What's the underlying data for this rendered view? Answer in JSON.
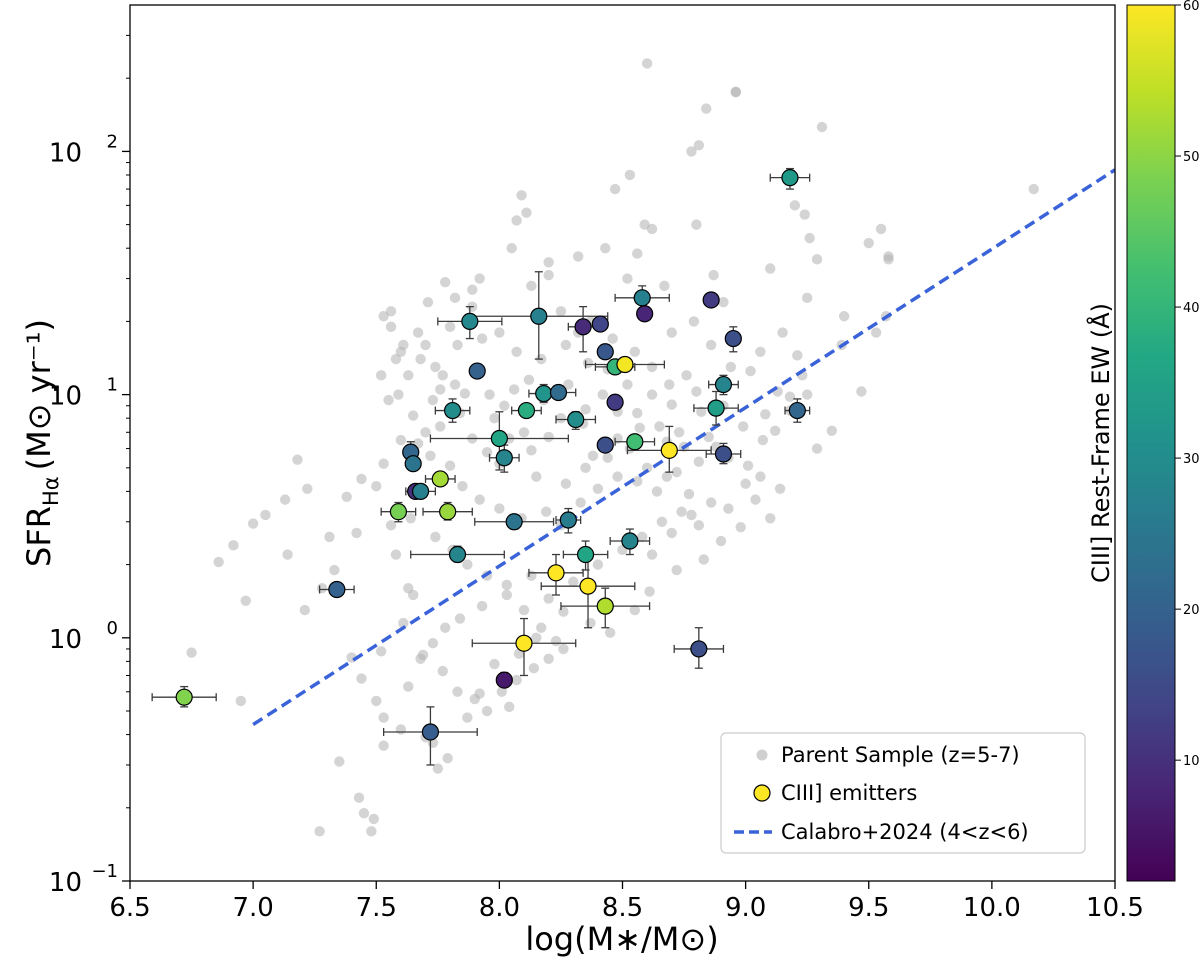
{
  "chart_data": {
    "type": "scatter",
    "xlabel": "log(M∗/M⊙)",
    "ylabel": "SFR",
    "ylabel_sub": "Hα",
    "ylabel_units": "(M⊙ yr⁻¹)",
    "xlim": [
      6.5,
      10.5
    ],
    "ylim": [
      0.1,
      400
    ],
    "yscale": "log",
    "grid": false,
    "x_ticks": [
      "6.5",
      "7.0",
      "7.5",
      "8.0",
      "8.5",
      "9.0",
      "9.5",
      "10.0",
      "10.5"
    ],
    "y_ticks": [
      {
        "value": 0.1,
        "base": "10",
        "exp": "−1"
      },
      {
        "value": 1,
        "base": "10",
        "exp": "0"
      },
      {
        "value": 10,
        "base": "10",
        "exp": "1"
      },
      {
        "value": 100,
        "base": "10",
        "exp": "2"
      }
    ],
    "colorbar": {
      "label": "CIII] Rest-Frame EW (Å)",
      "range": [
        2,
        60
      ],
      "ticks": [
        "10",
        "20",
        "30",
        "40",
        "50",
        "60"
      ],
      "colormap": "viridis"
    },
    "legend": {
      "placement": "lower-right",
      "entries": [
        {
          "label": "Parent Sample (z=5-7)",
          "marker": "gray-circle"
        },
        {
          "label": "CIII] emitters",
          "marker": "yellow-circle"
        },
        {
          "label": "Calabro+2024 (4<z<6)",
          "marker": "blue-dashed-line"
        }
      ]
    },
    "parent_color": "#b0b0b0",
    "parent_sample": [
      [
        8.6,
        230
      ],
      [
        8.96,
        176
      ],
      [
        8.78,
        100
      ],
      [
        8.84,
        150
      ],
      [
        8.47,
        70
      ],
      [
        9.31,
        126
      ],
      [
        8.96,
        175
      ],
      [
        8.81,
        106
      ],
      [
        7.89,
        23
      ],
      [
        7.92,
        30
      ],
      [
        8.05,
        40
      ],
      [
        8.07,
        52
      ],
      [
        8.2,
        31
      ],
      [
        8.32,
        37
      ],
      [
        8.09,
        66
      ],
      [
        8.11,
        56
      ],
      [
        7.78,
        29
      ],
      [
        7.8,
        19
      ],
      [
        7.82,
        25
      ],
      [
        7.89,
        27
      ],
      [
        8.13,
        28
      ],
      [
        8.2,
        35
      ],
      [
        8.43,
        40
      ],
      [
        8.52,
        30
      ],
      [
        8.56,
        38
      ],
      [
        8.67,
        28
      ],
      [
        8.87,
        31
      ],
      [
        8.91,
        24
      ],
      [
        9.1,
        33
      ],
      [
        9.2,
        60
      ],
      [
        9.26,
        44
      ],
      [
        9.29,
        36
      ],
      [
        9.25,
        25
      ],
      [
        9.24,
        55
      ],
      [
        9.5,
        42
      ],
      [
        9.58,
        37
      ],
      [
        10.17,
        70
      ],
      [
        8.53,
        80
      ],
      [
        8.59,
        50
      ],
      [
        8.62,
        48
      ],
      [
        8.8,
        50
      ],
      [
        7.56,
        22
      ],
      [
        7.61,
        16
      ],
      [
        7.67,
        18
      ],
      [
        7.71,
        24
      ],
      [
        7.56,
        19
      ],
      [
        7.6,
        15
      ],
      [
        7.53,
        21
      ],
      [
        7.58,
        14
      ],
      [
        7.74,
        13
      ],
      [
        7.77,
        12
      ],
      [
        7.82,
        11
      ],
      [
        7.92,
        12.5
      ],
      [
        7.96,
        10
      ],
      [
        8.02,
        9
      ],
      [
        8.1,
        7
      ],
      [
        8.18,
        9.5
      ],
      [
        8.25,
        8
      ],
      [
        8.34,
        7.6
      ],
      [
        8.42,
        10
      ],
      [
        8.48,
        8.5
      ],
      [
        8.56,
        8.4
      ],
      [
        8.65,
        7.4
      ],
      [
        8.73,
        7
      ],
      [
        8.82,
        8.5
      ],
      [
        8.91,
        9
      ],
      [
        8.99,
        7.4
      ],
      [
        9.07,
        6.5
      ],
      [
        9.12,
        7.1
      ],
      [
        9.18,
        8.6
      ],
      [
        9.25,
        10
      ],
      [
        9.35,
        7.1
      ],
      [
        9.47,
        10.3
      ],
      [
        9.53,
        18
      ],
      [
        9.57,
        21
      ],
      [
        7.13,
        3.7
      ],
      [
        7.22,
        4.1
      ],
      [
        7.18,
        5.4
      ],
      [
        7.0,
        2.95
      ],
      [
        7.05,
        3.2
      ],
      [
        7.14,
        2.2
      ],
      [
        7.31,
        2.6
      ],
      [
        7.38,
        3.8
      ],
      [
        7.5,
        4.2
      ],
      [
        7.44,
        4.5
      ],
      [
        7.53,
        5.2
      ],
      [
        7.67,
        6.3
      ],
      [
        7.72,
        5.6
      ],
      [
        7.8,
        5.1
      ],
      [
        7.85,
        4.2
      ],
      [
        7.92,
        3.7
      ],
      [
        8.0,
        3.4
      ],
      [
        8.09,
        3.1
      ],
      [
        8.19,
        3.3
      ],
      [
        8.25,
        2.9
      ],
      [
        8.33,
        3.6
      ],
      [
        8.4,
        4.1
      ],
      [
        8.48,
        4.6
      ],
      [
        8.56,
        4.4
      ],
      [
        8.64,
        4.0
      ],
      [
        8.72,
        4.8
      ],
      [
        8.81,
        5.3
      ],
      [
        8.88,
        6.1
      ],
      [
        8.93,
        5.5
      ],
      [
        9.01,
        5.1
      ],
      [
        9.06,
        4.6
      ],
      [
        6.92,
        2.4
      ],
      [
        6.86,
        2.05
      ],
      [
        6.97,
        1.42
      ],
      [
        7.21,
        1.3
      ],
      [
        7.28,
        1.6
      ],
      [
        7.33,
        1.9
      ],
      [
        7.4,
        0.83
      ],
      [
        7.44,
        0.68
      ],
      [
        7.5,
        0.55
      ],
      [
        7.53,
        0.47
      ],
      [
        7.63,
        0.63
      ],
      [
        7.68,
        0.82
      ],
      [
        7.73,
        0.95
      ],
      [
        7.78,
        1.1
      ],
      [
        7.84,
        1.2
      ],
      [
        7.93,
        1.35
      ],
      [
        8.03,
        1.65
      ],
      [
        8.13,
        1.8
      ],
      [
        8.2,
        1.45
      ],
      [
        8.26,
        1.28
      ],
      [
        8.37,
        1.15
      ],
      [
        8.45,
        1.05
      ],
      [
        8.55,
        1.3
      ],
      [
        8.61,
        1.55
      ],
      [
        8.72,
        1.9
      ],
      [
        8.83,
        2.1
      ],
      [
        8.9,
        2.5
      ],
      [
        8.98,
        2.85
      ],
      [
        9.1,
        3.1
      ],
      [
        6.75,
        0.87
      ],
      [
        6.95,
        0.55
      ],
      [
        7.27,
        0.16
      ],
      [
        7.43,
        0.22
      ],
      [
        7.45,
        0.19
      ],
      [
        7.48,
        0.16
      ],
      [
        7.49,
        0.18
      ],
      [
        7.35,
        0.31
      ],
      [
        7.53,
        0.36
      ],
      [
        7.6,
        0.42
      ],
      [
        7.7,
        0.39
      ],
      [
        7.73,
        0.37
      ],
      [
        7.75,
        0.29
      ],
      [
        7.79,
        0.32
      ],
      [
        7.87,
        0.47
      ],
      [
        7.95,
        0.5
      ],
      [
        8.01,
        0.6
      ],
      [
        8.07,
        0.67
      ],
      [
        8.14,
        0.75
      ],
      [
        8.2,
        0.82
      ],
      [
        8.26,
        0.9
      ],
      [
        8.04,
        0.52
      ],
      [
        7.92,
        0.59
      ],
      [
        7.63,
        1.6
      ],
      [
        7.52,
        0.88
      ],
      [
        9.29,
        6.0
      ],
      [
        9.0,
        4.3
      ],
      [
        8.78,
        3.2
      ],
      [
        8.7,
        2.7
      ],
      [
        8.62,
        2.2
      ],
      [
        9.23,
        12
      ],
      [
        9.21,
        14.5
      ],
      [
        9.39,
        16
      ],
      [
        8.25,
        22
      ],
      [
        8.32,
        18
      ],
      [
        8.36,
        13.5
      ],
      [
        8.44,
        12.7
      ],
      [
        8.7,
        18
      ],
      [
        8.79,
        20
      ],
      [
        8.86,
        16
      ],
      [
        9.02,
        12.5
      ],
      [
        7.63,
        12
      ],
      [
        7.68,
        14
      ],
      [
        7.73,
        9.5
      ],
      [
        7.84,
        8.4
      ],
      [
        7.98,
        8.0
      ],
      [
        8.04,
        6.6
      ],
      [
        8.13,
        5.9
      ],
      [
        8.2,
        6.7
      ],
      [
        8.38,
        5.6
      ],
      [
        8.48,
        6.6
      ],
      [
        8.57,
        7.3
      ],
      [
        8.68,
        6.4
      ],
      [
        8.75,
        6.1
      ],
      [
        8.85,
        6.7
      ],
      [
        9.08,
        8.3
      ],
      [
        9.13,
        10.3
      ],
      [
        7.55,
        9.5
      ],
      [
        7.52,
        12
      ],
      [
        7.59,
        10
      ],
      [
        7.65,
        8.2
      ],
      [
        7.76,
        7.4
      ],
      [
        7.89,
        6.6
      ],
      [
        7.95,
        5.8
      ],
      [
        8.0,
        5.2
      ],
      [
        8.15,
        4.6
      ],
      [
        8.27,
        4.3
      ],
      [
        8.35,
        5.0
      ],
      [
        8.44,
        5.5
      ],
      [
        8.53,
        6.0
      ],
      [
        8.6,
        5.0
      ],
      [
        8.68,
        4.6
      ],
      [
        8.77,
        3.9
      ],
      [
        8.86,
        3.6
      ],
      [
        8.93,
        3.4
      ],
      [
        9.04,
        3.7
      ],
      [
        9.14,
        4.1
      ],
      [
        7.42,
        2.7
      ],
      [
        7.56,
        2.9
      ],
      [
        7.64,
        3.1
      ],
      [
        7.74,
        2.6
      ],
      [
        7.81,
        2.3
      ],
      [
        7.87,
        2.0
      ],
      [
        7.95,
        1.8
      ],
      [
        8.03,
        1.5
      ],
      [
        8.1,
        1.3
      ],
      [
        8.17,
        1.1
      ],
      [
        8.23,
        0.97
      ],
      [
        8.3,
        1.7
      ],
      [
        8.4,
        2.0
      ],
      [
        8.5,
        2.3
      ],
      [
        8.58,
        2.6
      ],
      [
        8.66,
        3.0
      ],
      [
        8.74,
        3.3
      ],
      [
        8.81,
        2.9
      ],
      [
        7.58,
        2.2
      ],
      [
        7.65,
        1.5
      ],
      [
        7.61,
        1.15
      ],
      [
        7.69,
        0.85
      ],
      [
        7.77,
        0.73
      ],
      [
        7.83,
        0.6
      ],
      [
        7.9,
        0.56
      ],
      [
        7.98,
        0.78
      ],
      [
        8.08,
        0.86
      ],
      [
        8.15,
        1.0
      ],
      [
        7.7,
        16
      ],
      [
        7.83,
        16
      ],
      [
        7.93,
        17
      ],
      [
        8.0,
        18
      ],
      [
        8.07,
        15
      ],
      [
        8.17,
        14
      ],
      [
        8.27,
        16
      ],
      [
        8.37,
        20
      ],
      [
        8.46,
        17
      ],
      [
        8.55,
        15
      ],
      [
        8.62,
        13
      ],
      [
        8.69,
        11
      ],
      [
        8.76,
        12
      ],
      [
        8.94,
        13
      ],
      [
        9.06,
        15
      ],
      [
        9.15,
        18
      ],
      [
        7.6,
        6.5
      ],
      [
        7.7,
        7.0
      ],
      [
        7.76,
        10.5
      ],
      [
        7.86,
        10.1
      ],
      [
        8.06,
        10.5
      ],
      [
        8.12,
        11.5
      ],
      [
        8.28,
        11
      ],
      [
        8.35,
        8.7
      ],
      [
        8.52,
        11
      ],
      [
        8.62,
        10
      ],
      [
        8.7,
        9.1
      ],
      [
        8.8,
        10.3
      ],
      [
        9.18,
        9.8
      ],
      [
        9.4,
        21
      ],
      [
        9.55,
        48
      ],
      [
        9.58,
        36
      ]
    ],
    "emitters": [
      {
        "x": 6.72,
        "y": 0.57,
        "xerr": 0.13,
        "ylo": 0.52,
        "yhi": 0.63,
        "ew": 49
      },
      {
        "x": 7.34,
        "y": 1.58,
        "xerr": 0.07,
        "ew": 20
      },
      {
        "x": 7.72,
        "y": 0.41,
        "xerr": 0.19,
        "ylo": 0.3,
        "yhi": 0.52,
        "ew": 19
      },
      {
        "x": 7.64,
        "y": 5.8,
        "ylo": 5.3,
        "yhi": 6.4,
        "ew": 21
      },
      {
        "x": 7.65,
        "y": 5.2,
        "ew": 24
      },
      {
        "x": 7.66,
        "y": 4.0,
        "ew": 10
      },
      {
        "x": 7.68,
        "y": 4.0,
        "xerr": 0.06,
        "ew": 27
      },
      {
        "x": 7.59,
        "y": 3.3,
        "xerr": 0.07,
        "ylo": 3.0,
        "yhi": 3.6,
        "ew": 48
      },
      {
        "x": 7.76,
        "y": 4.5,
        "xerr": 0.06,
        "ew": 52
      },
      {
        "x": 7.79,
        "y": 3.3,
        "xerr": 0.1,
        "ylo": 3.05,
        "yhi": 3.6,
        "ew": 51
      },
      {
        "x": 7.81,
        "y": 8.6,
        "xerr": 0.07,
        "ylo": 7.7,
        "yhi": 9.6,
        "ew": 30
      },
      {
        "x": 7.83,
        "y": 2.2,
        "xerr": 0.19,
        "ylo": 2.05,
        "yhi": 2.38,
        "ew": 28
      },
      {
        "x": 7.88,
        "y": 20,
        "xerr": 0.13,
        "ylo": 17,
        "yhi": 23,
        "ew": 29
      },
      {
        "x": 7.91,
        "y": 12.5,
        "ew": 20
      },
      {
        "x": 8.0,
        "y": 6.6,
        "xerr": 0.28,
        "ylo": 4.9,
        "yhi": 8.5,
        "ew": 36
      },
      {
        "x": 8.02,
        "y": 5.5,
        "xerr": 0.06,
        "ylo": 4.8,
        "yhi": 6.2,
        "ew": 28
      },
      {
        "x": 8.06,
        "y": 3.0,
        "xerr": 0.16,
        "ylo": 2.8,
        "yhi": 3.2,
        "ew": 24
      },
      {
        "x": 8.16,
        "y": 21,
        "xerr": 0.28,
        "ylo": 14,
        "yhi": 32,
        "ew": 27
      },
      {
        "x": 8.1,
        "y": 0.95,
        "xerr": 0.21,
        "ylo": 0.7,
        "yhi": 1.2,
        "ew": 60
      },
      {
        "x": 8.02,
        "y": 0.67,
        "ylo": 0.63,
        "yhi": 0.72,
        "ew": 6
      },
      {
        "x": 8.11,
        "y": 8.6,
        "xerr": 0.06,
        "ew": 38
      },
      {
        "x": 8.18,
        "y": 10.1,
        "xerr": 0.06,
        "ylo": 9.3,
        "yhi": 11,
        "ew": 32
      },
      {
        "x": 8.24,
        "y": 10.2,
        "xerr": 0.07,
        "ew": 22
      },
      {
        "x": 8.23,
        "y": 1.85,
        "xerr": 0.11,
        "ylo": 1.5,
        "yhi": 2.2,
        "ew": 60
      },
      {
        "x": 8.28,
        "y": 3.05,
        "xerr": 0.05,
        "ylo": 2.7,
        "yhi": 3.4,
        "ew": 26
      },
      {
        "x": 8.31,
        "y": 7.9,
        "xerr": 0.08,
        "ylo": 7.2,
        "yhi": 8.5,
        "ew": 30
      },
      {
        "x": 8.34,
        "y": 19,
        "xerr": 0.06,
        "ylo": 15,
        "yhi": 23,
        "ew": 9
      },
      {
        "x": 8.35,
        "y": 2.2,
        "xerr": 0.09,
        "ylo": 1.9,
        "yhi": 2.5,
        "ew": 36
      },
      {
        "x": 8.36,
        "y": 1.63,
        "xerr": 0.19,
        "ylo": 1.1,
        "yhi": 2.1,
        "ew": 60
      },
      {
        "x": 8.41,
        "y": 19.5,
        "ew": 14
      },
      {
        "x": 8.43,
        "y": 15,
        "ew": 18
      },
      {
        "x": 8.43,
        "y": 6.2,
        "ew": 16
      },
      {
        "x": 8.43,
        "y": 1.35,
        "xerr": 0.18,
        "ylo": 1.1,
        "yhi": 1.6,
        "ew": 53
      },
      {
        "x": 8.47,
        "y": 13,
        "xerr": 0.08,
        "ew": 40
      },
      {
        "x": 8.47,
        "y": 9.3,
        "ew": 12
      },
      {
        "x": 8.51,
        "y": 13.3,
        "xerr": 0.16,
        "ew": 59
      },
      {
        "x": 8.53,
        "y": 2.5,
        "xerr": 0.08,
        "ylo": 2.2,
        "yhi": 2.8,
        "ew": 28
      },
      {
        "x": 8.55,
        "y": 6.4,
        "xerr": 0.08,
        "ew": 42
      },
      {
        "x": 8.58,
        "y": 25,
        "xerr": 0.11,
        "ylo": 22,
        "yhi": 28,
        "ew": 27
      },
      {
        "x": 8.59,
        "y": 21.5,
        "ew": 8
      },
      {
        "x": 8.69,
        "y": 5.9,
        "xerr": 0.17,
        "ylo": 4.8,
        "yhi": 7.4,
        "ew": 60
      },
      {
        "x": 8.81,
        "y": 0.9,
        "xerr": 0.1,
        "ylo": 0.75,
        "yhi": 1.1,
        "ew": 16
      },
      {
        "x": 8.86,
        "y": 24.5,
        "ew": 12
      },
      {
        "x": 8.88,
        "y": 8.8,
        "xerr": 0.09,
        "ylo": 7.5,
        "yhi": 10.3,
        "ew": 34
      },
      {
        "x": 8.91,
        "y": 11,
        "xerr": 0.06,
        "ylo": 10,
        "yhi": 12,
        "ew": 28
      },
      {
        "x": 8.91,
        "y": 5.7,
        "xerr": 0.07,
        "ylo": 5.2,
        "yhi": 6.3,
        "ew": 16
      },
      {
        "x": 8.95,
        "y": 17,
        "ylo": 15,
        "yhi": 19,
        "ew": 16
      },
      {
        "x": 9.18,
        "y": 78,
        "xerr": 0.08,
        "ylo": 70,
        "yhi": 85,
        "ew": 33
      },
      {
        "x": 9.21,
        "y": 8.6,
        "xerr": 0.05,
        "ylo": 7.7,
        "yhi": 9.6,
        "ew": 21
      }
    ],
    "relation_line": {
      "name": "Calabro+2024 (4<z<6)",
      "color": "#3a63d9",
      "x": [
        7.0,
        10.5
      ],
      "y": [
        0.44,
        84
      ]
    }
  }
}
